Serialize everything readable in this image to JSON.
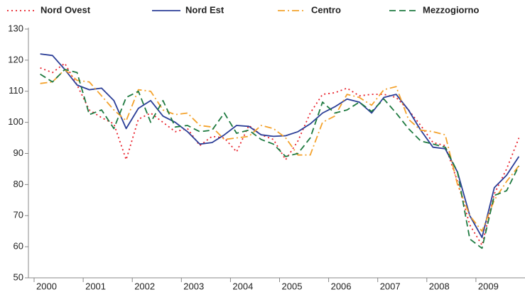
{
  "chart_data": {
    "type": "line",
    "categories": [
      "2000",
      null,
      null,
      null,
      "2001",
      null,
      null,
      null,
      "2002",
      null,
      null,
      null,
      "2003",
      null,
      null,
      null,
      "2004",
      null,
      null,
      null,
      "2005",
      null,
      null,
      null,
      "2006",
      null,
      null,
      null,
      "2007",
      null,
      null,
      null,
      "2008",
      null,
      null,
      null,
      "2009",
      null,
      null,
      null
    ],
    "series": [
      {
        "name": "Nord Ovest",
        "color": "#e8202a",
        "dash": "dotted",
        "values": [
          117.5,
          116,
          119,
          112,
          104,
          101.5,
          99.5,
          88,
          101,
          103,
          100,
          97,
          98,
          92.5,
          95.5,
          95,
          90.5,
          99,
          96,
          94.5,
          88,
          94,
          103,
          109,
          109.5,
          111,
          108.5,
          109,
          109,
          108,
          104,
          99,
          93.5,
          92.5,
          81,
          67,
          60.5,
          77,
          85,
          95
        ]
      },
      {
        "name": "Nord Est",
        "color": "#2b3e97",
        "dash": "solid",
        "values": [
          122,
          121.5,
          117,
          112,
          110.5,
          111,
          107,
          98,
          104.5,
          107,
          102,
          100,
          97,
          93,
          93.5,
          96,
          99,
          98.7,
          96,
          95.5,
          95.7,
          97,
          99.5,
          103,
          105,
          107.5,
          106.5,
          103,
          108,
          109,
          104,
          97.5,
          92,
          91.5,
          84,
          70,
          63,
          79,
          83,
          89
        ]
      },
      {
        "name": "Centro",
        "color": "#f4a22c",
        "dash": "dashdot",
        "values": [
          112.5,
          113,
          117,
          113.5,
          113,
          108.5,
          104,
          100.5,
          110.5,
          110,
          104,
          102.5,
          103,
          99,
          98.5,
          94.5,
          95,
          95.5,
          99,
          98,
          95,
          89.5,
          89.5,
          100,
          102,
          109,
          108,
          105.5,
          110.5,
          111.5,
          101,
          97.5,
          97,
          96,
          80,
          70,
          65,
          75,
          81,
          86
        ]
      },
      {
        "name": "Mezzogiorno",
        "color": "#1e7a40",
        "dash": "dashed",
        "values": [
          115.5,
          113,
          117,
          116,
          102.5,
          104,
          98,
          108,
          110,
          100,
          107,
          98.5,
          99,
          97,
          97.5,
          103,
          96.5,
          97.5,
          94.5,
          93,
          89,
          90,
          95,
          106.5,
          103,
          104,
          106.5,
          103.5,
          107.5,
          103,
          98,
          94,
          93,
          92,
          84,
          62.5,
          59.5,
          76.5,
          78,
          86
        ]
      }
    ],
    "ylim": [
      50,
      130
    ],
    "yticks": [
      50,
      60,
      70,
      80,
      90,
      100,
      110,
      120,
      130
    ],
    "grid": false,
    "legend": "top"
  }
}
